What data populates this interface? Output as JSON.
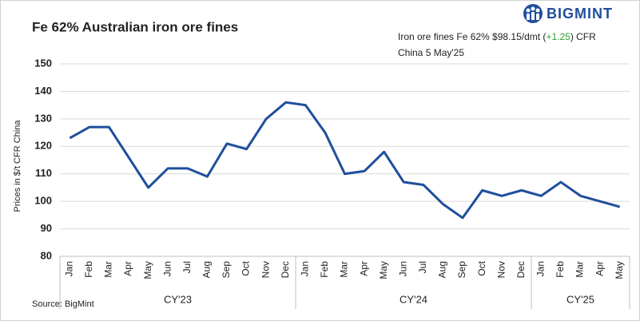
{
  "chart_data": {
    "type": "line",
    "title": "Fe 62% Australian iron ore fines",
    "annotation": {
      "line1_prefix": "Iron ore fines Fe 62% $98.15/dmt (",
      "change": "+1.25",
      "line1_suffix": ") CFR",
      "line2": "China 5 May'25",
      "change_color": "#2ca02c"
    },
    "logo": "BIGMINT",
    "source": "Source: BigMint",
    "y_label": "Prices in $/t CFR China",
    "groups": [
      {
        "label": "CY'23",
        "categories": [
          "Jan",
          "Feb",
          "Mar",
          "Apr",
          "May",
          "Jun",
          "Jul",
          "Aug",
          "Sep",
          "Oct",
          "Nov",
          "Dec"
        ]
      },
      {
        "label": "CY'24",
        "categories": [
          "Jan",
          "Feb",
          "Mar",
          "Apr",
          "May",
          "Jun",
          "Jul",
          "Aug",
          "Sep",
          "Oct",
          "Nov",
          "Dec"
        ]
      },
      {
        "label": "CY'25",
        "categories": [
          "Jan",
          "Feb",
          "Mar",
          "Apr",
          "May"
        ]
      }
    ],
    "values": [
      123,
      127,
      127,
      116,
      105,
      112,
      112,
      109,
      121,
      119,
      130,
      136,
      135,
      125,
      110,
      111,
      118,
      107,
      106,
      99,
      94,
      104,
      102,
      104,
      102,
      107,
      102,
      100,
      98
    ],
    "color": "#1f4e9c",
    "ylim": [
      80,
      150
    ],
    "yticks": [
      80,
      90,
      100,
      110,
      120,
      130,
      140,
      150
    ],
    "grid": true
  }
}
